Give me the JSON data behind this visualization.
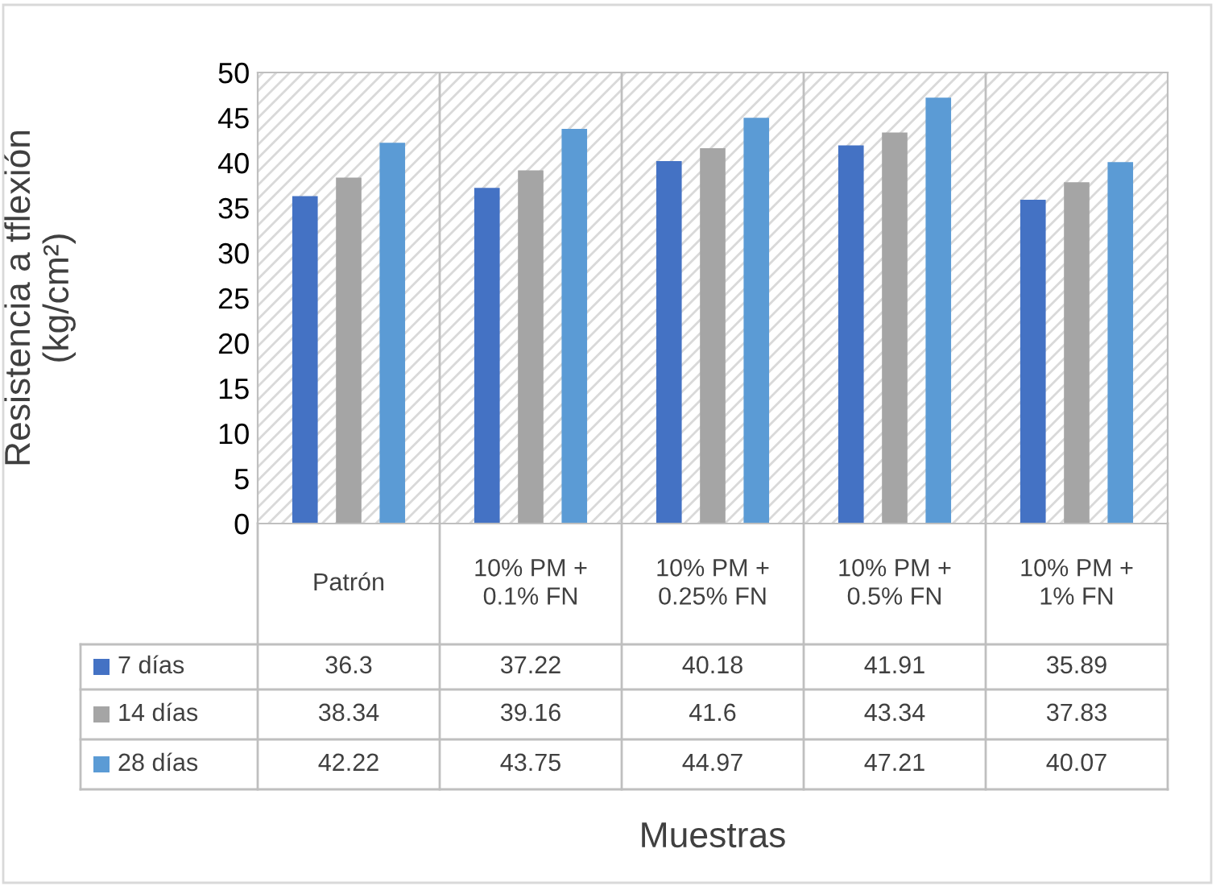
{
  "chart_data": {
    "type": "bar",
    "annotations": [
      "Muestras"
    ],
    "ylabel": "Resistencia a tflexión\n(kg/cm²)",
    "categories": [
      "Patrón",
      "10% PM +\n0.1% FN",
      "10% PM +\n0.25% FN",
      "10% PM +\n0.5% FN",
      "10% PM +\n1% FN"
    ],
    "series": [
      {
        "name": "7 días",
        "color": "#4472c4",
        "values": [
          36.3,
          37.22,
          40.18,
          41.91,
          35.89
        ]
      },
      {
        "name": "14 días",
        "color": "#a5a5a5",
        "values": [
          38.34,
          39.16,
          41.6,
          43.34,
          37.83
        ]
      },
      {
        "name": "28 días",
        "color": "#5b9bd5",
        "values": [
          42.22,
          43.75,
          44.97,
          47.21,
          40.07
        ]
      }
    ],
    "ylim": [
      0,
      50
    ],
    "yticks": [
      0,
      5,
      10,
      15,
      20,
      25,
      30,
      35,
      40,
      45,
      50
    ],
    "grid": false,
    "legend": "bottom",
    "data_labels": true
  }
}
